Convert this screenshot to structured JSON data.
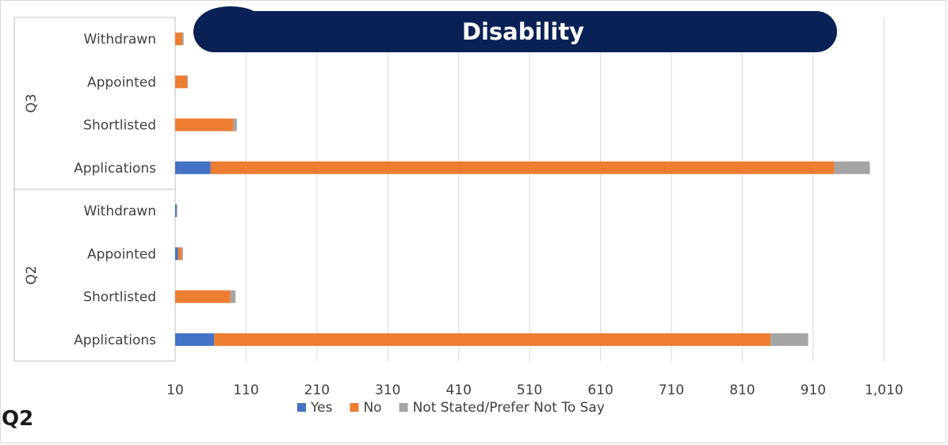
{
  "page_heading": "Q2",
  "chart_data": {
    "type": "bar",
    "orientation": "horizontal",
    "stacked": true,
    "title": "Disability",
    "groups": [
      {
        "name": "Q3",
        "categories": [
          "Withdrawn",
          "Appointed",
          "Shortlisted",
          "Applications"
        ]
      },
      {
        "name": "Q2",
        "categories": [
          "Withdrawn",
          "Appointed",
          "Shortlisted",
          "Applications"
        ]
      }
    ],
    "series": [
      {
        "name": "Yes",
        "color": "#4472c4",
        "values": {
          "Q3": [
            0,
            0,
            0,
            50
          ],
          "Q2": [
            2,
            4,
            0,
            55
          ]
        }
      },
      {
        "name": "No",
        "color": "#ed7d31",
        "values": {
          "Q3": [
            10,
            17,
            82,
            880
          ],
          "Q2": [
            0,
            5,
            78,
            785
          ]
        }
      },
      {
        "name": "Not Stated/Prefer Not To Say",
        "color": "#a5a5a5",
        "values": {
          "Q3": [
            2,
            1,
            5,
            50
          ],
          "Q2": [
            1,
            2,
            7,
            53
          ]
        }
      }
    ],
    "xlim": [
      10,
      1060
    ],
    "xticks": [
      10,
      110,
      210,
      310,
      410,
      510,
      610,
      710,
      810,
      910,
      1010
    ],
    "xtick_labels": [
      "10",
      "110",
      "210",
      "310",
      "410",
      "510",
      "610",
      "710",
      "810",
      "910",
      "1,010"
    ],
    "grid": true,
    "legend": "bottom"
  }
}
